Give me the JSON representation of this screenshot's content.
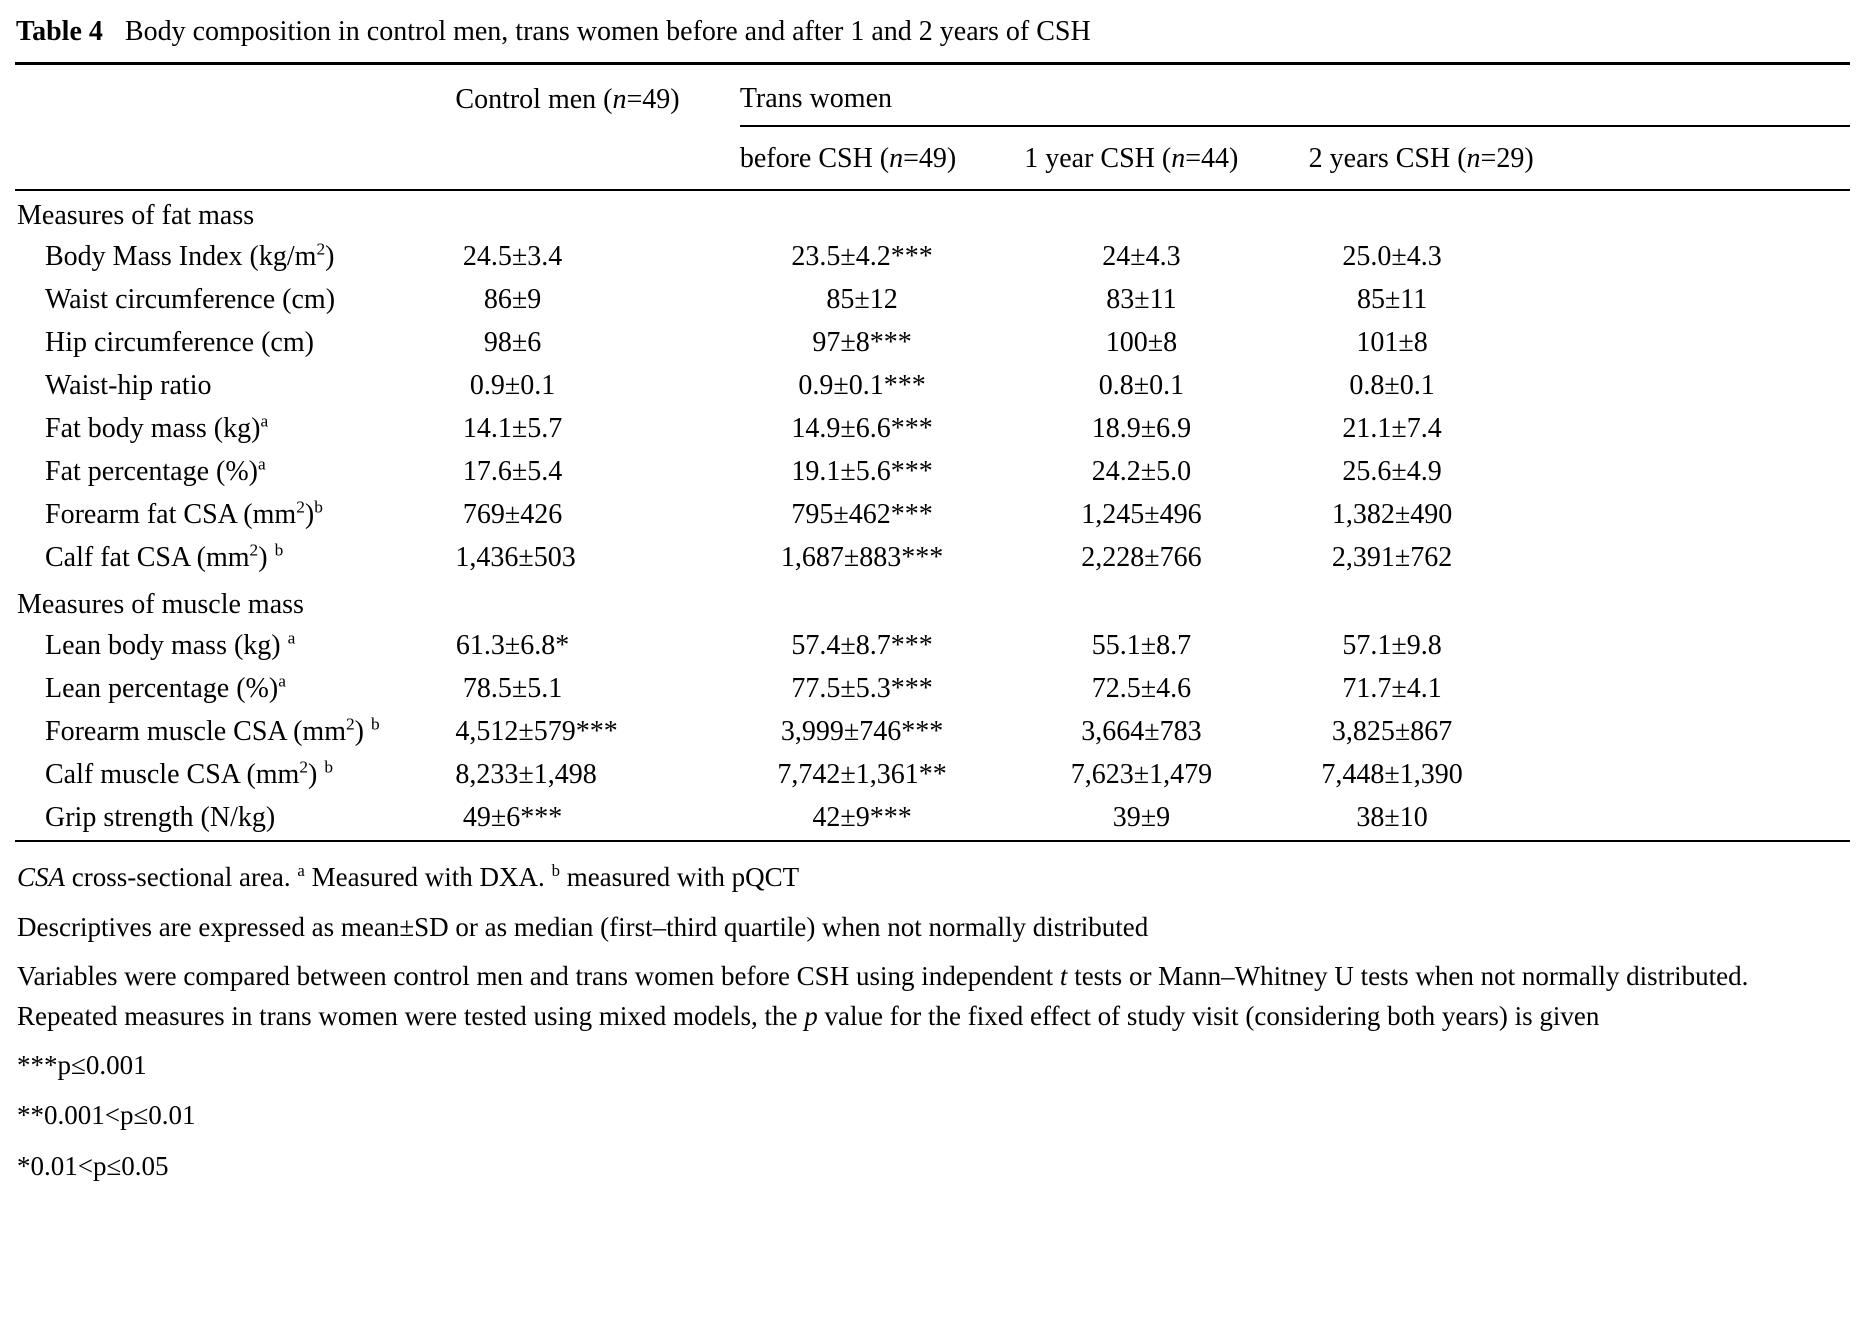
{
  "title": {
    "label": "Table 4",
    "caption": "Body composition in control men, trans women before and after 1 and 2 years of CSH"
  },
  "table": {
    "group_headers": {
      "control": [
        {
          "t": "Control men ("
        },
        {
          "t": "n",
          "i": true
        },
        {
          "t": "=49)"
        }
      ],
      "trans": [
        {
          "t": "Trans women"
        }
      ]
    },
    "sub_headers": [
      [
        {
          "t": "before CSH ("
        },
        {
          "t": "n",
          "i": true
        },
        {
          "t": "=49)"
        }
      ],
      [
        {
          "t": "1 year CSH ("
        },
        {
          "t": "n",
          "i": true
        },
        {
          "t": "=44)"
        }
      ],
      [
        {
          "t": "2 years CSH ("
        },
        {
          "t": "n",
          "i": true
        },
        {
          "t": "=29)"
        }
      ]
    ],
    "sections": [
      {
        "header": "Measures of fat mass",
        "rows": [
          {
            "label": [
              {
                "t": "Body Mass Index (kg/m"
              },
              {
                "t": "2",
                "sup": true
              },
              {
                "t": ")"
              }
            ],
            "values": [
              "24.5±3.4",
              "23.5±4.2***",
              "24±4.3",
              "25.0±4.3"
            ]
          },
          {
            "label": [
              {
                "t": "Waist circumference (cm)"
              }
            ],
            "values": [
              "86±9",
              "85±12",
              "83±11",
              "85±11"
            ]
          },
          {
            "label": [
              {
                "t": "Hip circumference (cm)"
              }
            ],
            "values": [
              "98±6",
              "97±8***",
              "100±8",
              "101±8"
            ]
          },
          {
            "label": [
              {
                "t": "Waist-hip ratio"
              }
            ],
            "values": [
              "0.9±0.1",
              "0.9±0.1***",
              "0.8±0.1",
              "0.8±0.1"
            ]
          },
          {
            "label": [
              {
                "t": "Fat body mass (kg)"
              },
              {
                "t": "a",
                "sup": true
              }
            ],
            "values": [
              "14.1±5.7",
              "14.9±6.6***",
              "18.9±6.9",
              "21.1±7.4"
            ]
          },
          {
            "label": [
              {
                "t": "Fat percentage (%)"
              },
              {
                "t": "a",
                "sup": true
              }
            ],
            "values": [
              "17.6±5.4",
              "19.1±5.6***",
              "24.2±5.0",
              "25.6±4.9"
            ]
          },
          {
            "label": [
              {
                "t": "Forearm fat CSA (mm"
              },
              {
                "t": "2",
                "sup": true
              },
              {
                "t": ")"
              },
              {
                "t": "b",
                "sup": true
              }
            ],
            "values": [
              "769±426",
              "795±462***",
              "1,245±496",
              "1,382±490"
            ]
          },
          {
            "label": [
              {
                "t": "Calf fat CSA (mm"
              },
              {
                "t": "2",
                "sup": true
              },
              {
                "t": ") "
              },
              {
                "t": "b",
                "sup": true
              }
            ],
            "values": [
              "1,436±503",
              "1,687±883***",
              "2,228±766",
              "2,391±762"
            ]
          }
        ]
      },
      {
        "header": "Measures of muscle mass",
        "rows": [
          {
            "label": [
              {
                "t": "Lean body mass (kg) "
              },
              {
                "t": "a",
                "sup": true
              }
            ],
            "values": [
              "61.3±6.8*",
              "57.4±8.7***",
              "55.1±8.7",
              "57.1±9.8"
            ]
          },
          {
            "label": [
              {
                "t": "Lean percentage (%)"
              },
              {
                "t": "a",
                "sup": true
              }
            ],
            "values": [
              "78.5±5.1",
              "77.5±5.3***",
              "72.5±4.6",
              "71.7±4.1"
            ]
          },
          {
            "label": [
              {
                "t": "Forearm muscle CSA (mm"
              },
              {
                "t": "2",
                "sup": true
              },
              {
                "t": ") "
              },
              {
                "t": "b",
                "sup": true
              }
            ],
            "values": [
              "4,512±579***",
              "3,999±746***",
              "3,664±783",
              "3,825±867"
            ]
          },
          {
            "label": [
              {
                "t": "Calf muscle CSA (mm"
              },
              {
                "t": "2",
                "sup": true
              },
              {
                "t": ") "
              },
              {
                "t": "b",
                "sup": true
              }
            ],
            "values": [
              "8,233±1,498",
              "7,742±1,361**",
              "7,623±1,479",
              "7,448±1,390"
            ]
          },
          {
            "label": [
              {
                "t": "Grip strength (N/kg)"
              }
            ],
            "values": [
              "49±6***",
              "42±9***",
              "39±9",
              "38±10"
            ]
          }
        ]
      }
    ]
  },
  "footnotes": [
    [
      {
        "t": "CSA",
        "i": true
      },
      {
        "t": " cross-sectional area. "
      },
      {
        "t": "a",
        "sup": true
      },
      {
        "t": " Measured with DXA. "
      },
      {
        "t": "b",
        "sup": true
      },
      {
        "t": " measured with pQCT"
      }
    ],
    [
      {
        "t": "Descriptives are expressed as mean±SD or as median (first–third quartile) when not normally distributed"
      }
    ],
    [
      {
        "t": "Variables were compared between control men and trans women before CSH using independent "
      },
      {
        "t": "t",
        "i": true
      },
      {
        "t": " tests or Mann–Whitney U tests when not normally distributed. Repeated measures in trans women were tested using mixed models, the "
      },
      {
        "t": "p",
        "i": true
      },
      {
        "t": " value for the fixed effect of study visit (considering both years) is given"
      }
    ],
    [
      {
        "t": "***p≤0.001"
      }
    ],
    [
      {
        "t": "**0.001<p≤0.01"
      }
    ],
    [
      {
        "t": "*0.01<p≤0.05"
      }
    ]
  ]
}
